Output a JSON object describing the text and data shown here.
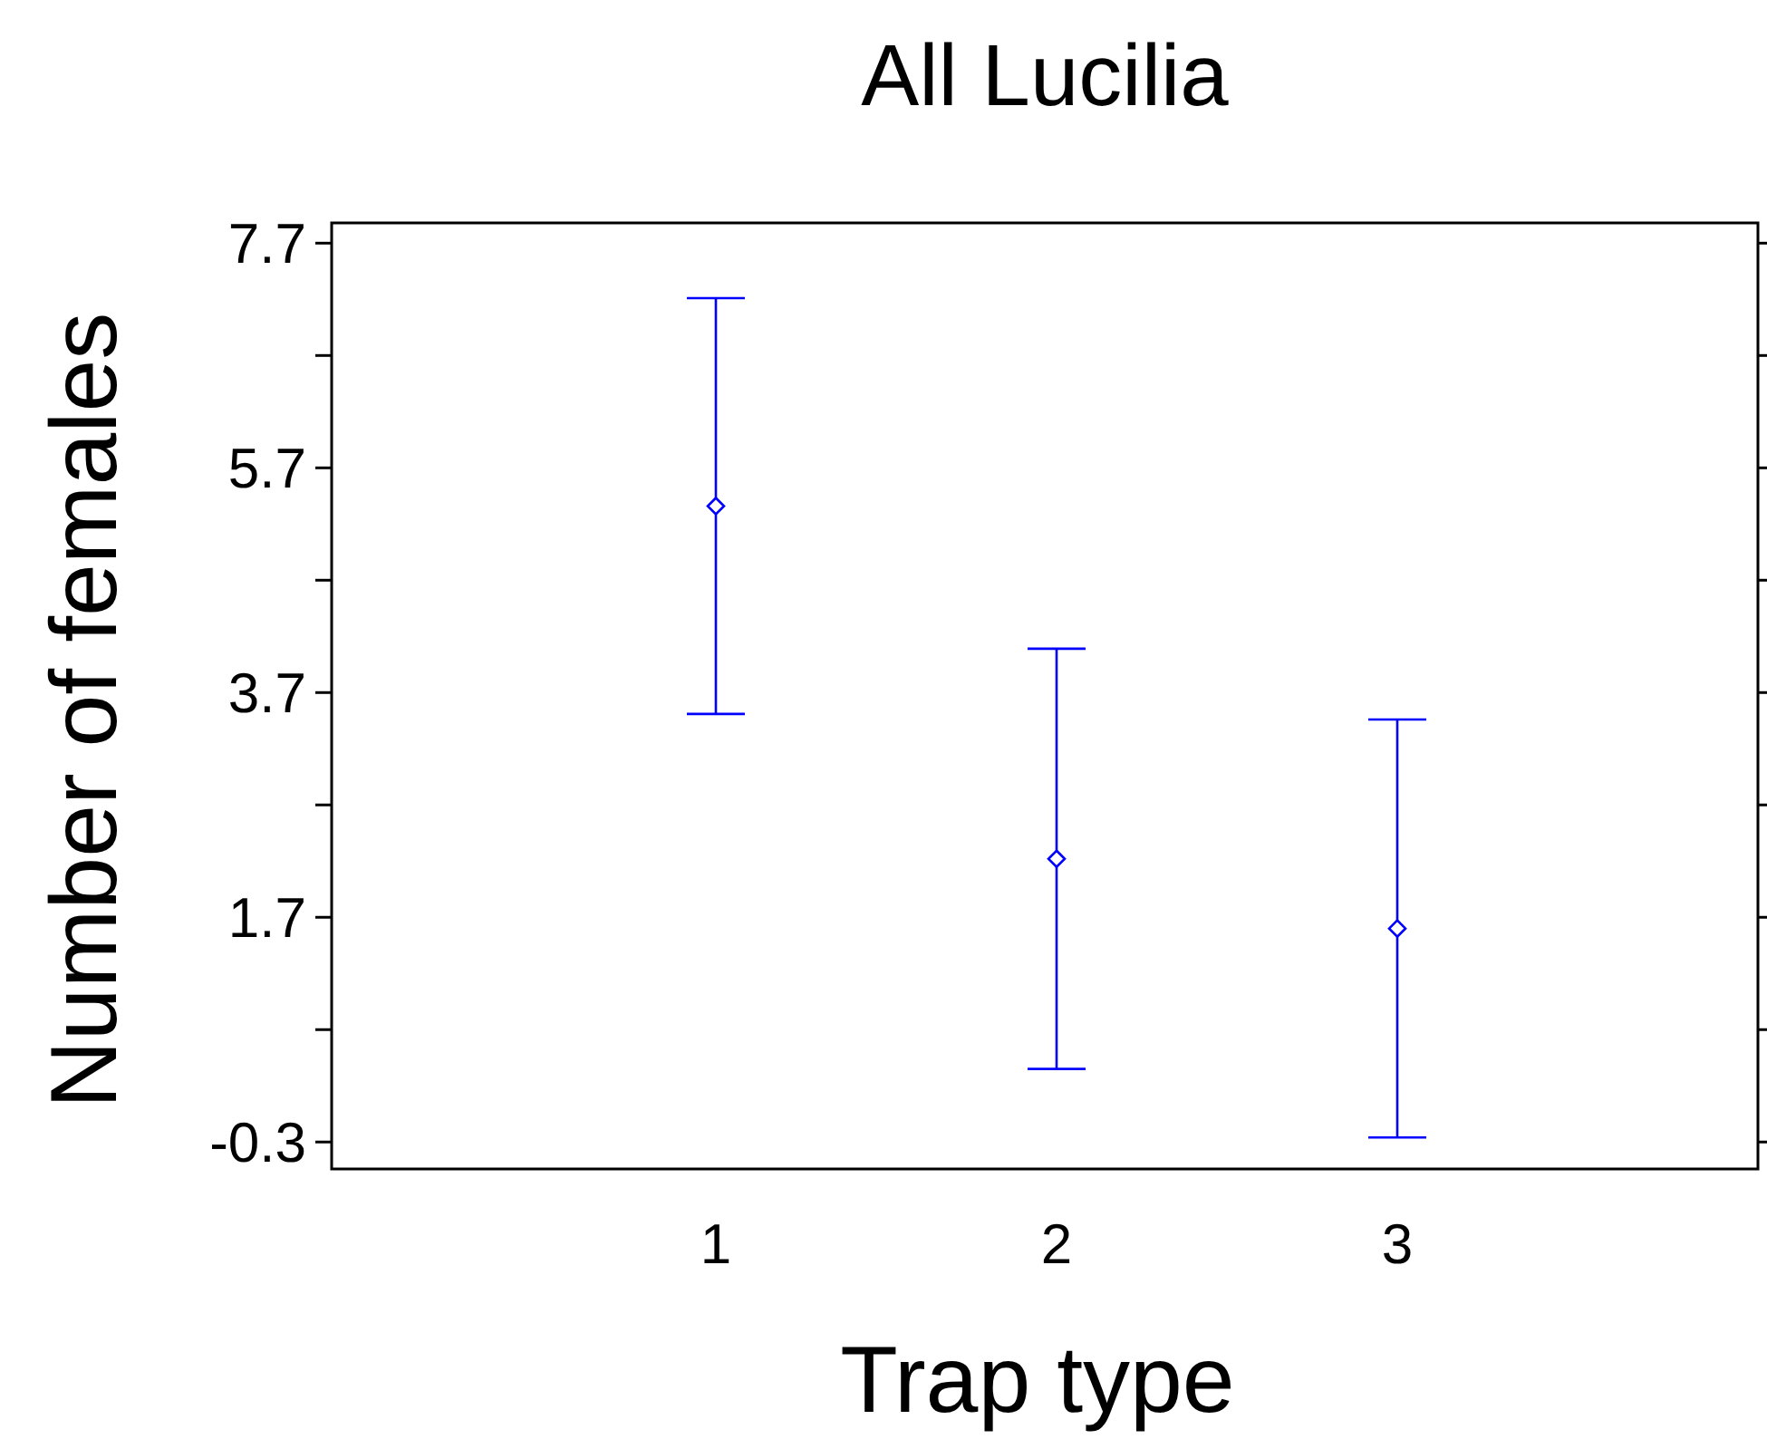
{
  "chart_data": {
    "type": "scatter",
    "title": "All Lucilia",
    "xlabel": "Trap type",
    "ylabel": "Number of females",
    "categories": [
      "1",
      "2",
      "3"
    ],
    "series": [
      {
        "color": "#0000ff",
        "values": [
          5.36,
          2.22,
          1.6
        ],
        "errors": [
          1.85,
          1.87,
          1.86
        ]
      }
    ],
    "ylim": [
      -0.54,
      7.88
    ],
    "yticks": [
      -0.3,
      {
        "value": 0.7,
        "label": null
      },
      1.7,
      {
        "value": 2.7,
        "label": null
      },
      3.7,
      {
        "value": 4.7,
        "label": null
      },
      5.7,
      {
        "value": 6.7,
        "label": null
      },
      7.7
    ],
    "marker": "diamond",
    "grid": false
  }
}
